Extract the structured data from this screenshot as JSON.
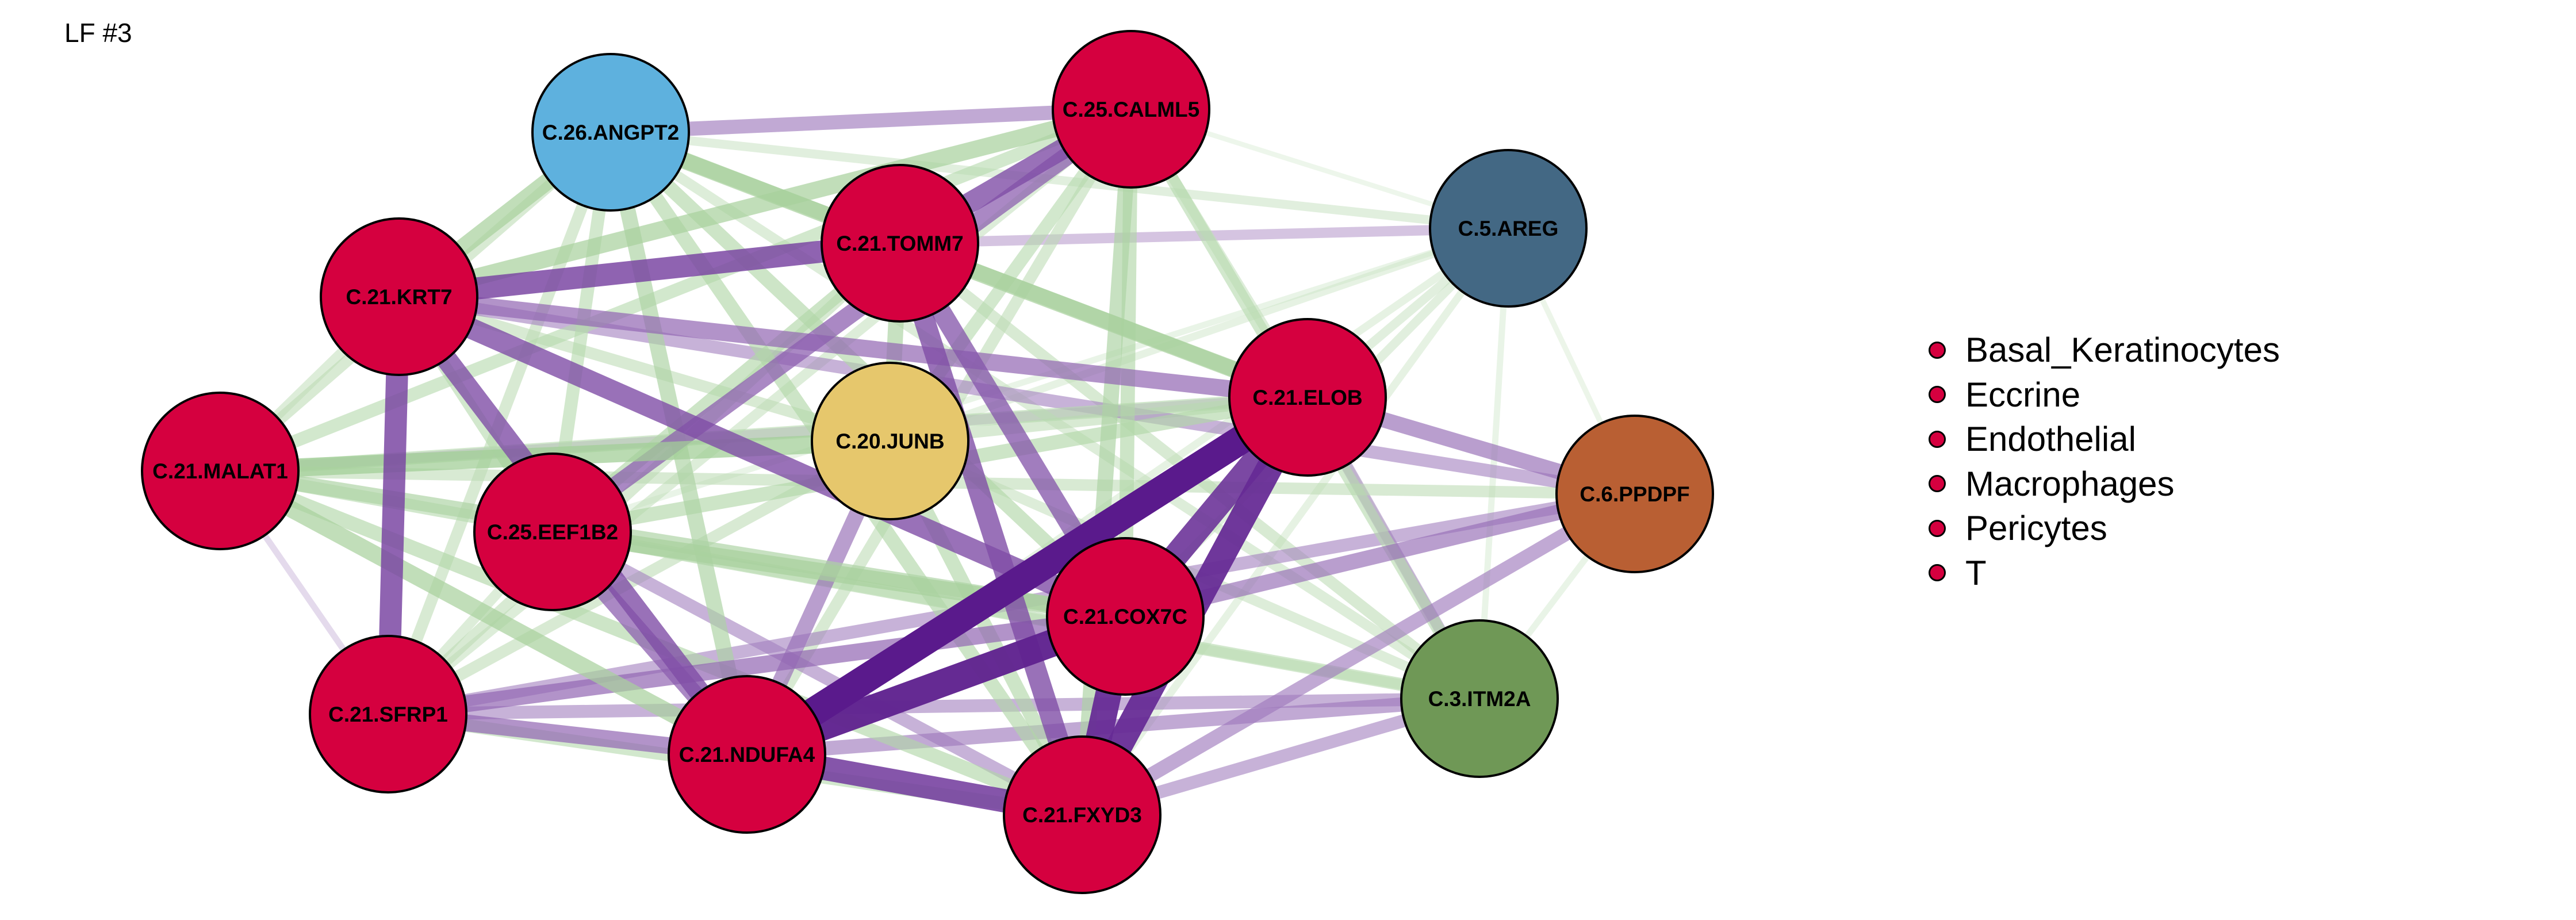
{
  "title": "LF #3",
  "colors": {
    "node_red": "#d5003f",
    "node_blue": "#5eb1de",
    "node_steel": "#436884",
    "node_yellow": "#e6c76c",
    "node_orange": "#b95f33",
    "node_green": "#6f9856",
    "node_border": "#000000",
    "edge_positive": "#7ab96b",
    "edge_negative": "#5a1a8c"
  },
  "nodes": [
    {
      "id": "ANGPT2",
      "label": "C.26.ANGPT2",
      "color": "node_blue"
    },
    {
      "id": "CALML5",
      "label": "C.25.CALML5",
      "color": "node_red"
    },
    {
      "id": "AREG",
      "label": "C.5.AREG",
      "color": "node_steel"
    },
    {
      "id": "TOMM7",
      "label": "C.21.TOMM7",
      "color": "node_red"
    },
    {
      "id": "KRT7",
      "label": "C.21.KRT7",
      "color": "node_red"
    },
    {
      "id": "ELOB",
      "label": "C.21.ELOB",
      "color": "node_red"
    },
    {
      "id": "JUNB",
      "label": "C.20.JUNB",
      "color": "node_yellow"
    },
    {
      "id": "MALAT1",
      "label": "C.21.MALAT1",
      "color": "node_red"
    },
    {
      "id": "PPDPF",
      "label": "C.6.PPDPF",
      "color": "node_orange"
    },
    {
      "id": "EEF1B2",
      "label": "C.25.EEF1B2",
      "color": "node_red"
    },
    {
      "id": "COX7C",
      "label": "C.21.COX7C",
      "color": "node_red"
    },
    {
      "id": "ITM2A",
      "label": "C.3.ITM2A",
      "color": "node_green"
    },
    {
      "id": "SFRP1",
      "label": "C.21.SFRP1",
      "color": "node_red"
    },
    {
      "id": "NDUFA4",
      "label": "C.21.NDUFA4",
      "color": "node_red"
    },
    {
      "id": "FXYD3",
      "label": "C.21.FXYD3",
      "color": "node_red"
    }
  ],
  "edges": [
    {
      "from": "NDUFA4",
      "to": "ELOB",
      "sign": "negative",
      "weight": 1.0
    },
    {
      "from": "NDUFA4",
      "to": "COX7C",
      "sign": "negative",
      "weight": 0.95
    },
    {
      "from": "FXYD3",
      "to": "ELOB",
      "sign": "negative",
      "weight": 0.9
    },
    {
      "from": "COX7C",
      "to": "ELOB",
      "sign": "negative",
      "weight": 0.85
    },
    {
      "from": "COX7C",
      "to": "FXYD3",
      "sign": "negative",
      "weight": 0.9
    },
    {
      "from": "NDUFA4",
      "to": "FXYD3",
      "sign": "negative",
      "weight": 0.8
    },
    {
      "from": "KRT7",
      "to": "TOMM7",
      "sign": "negative",
      "weight": 0.75
    },
    {
      "from": "KRT7",
      "to": "SFRP1",
      "sign": "negative",
      "weight": 0.75
    },
    {
      "from": "TOMM7",
      "to": "CALML5",
      "sign": "negative",
      "weight": 0.7
    },
    {
      "from": "KRT7",
      "to": "NDUFA4",
      "sign": "negative",
      "weight": 0.7
    },
    {
      "from": "KRT7",
      "to": "COX7C",
      "sign": "negative",
      "weight": 0.7
    },
    {
      "from": "TOMM7",
      "to": "FXYD3",
      "sign": "negative",
      "weight": 0.7
    },
    {
      "from": "TOMM7",
      "to": "COX7C",
      "sign": "negative",
      "weight": 0.65
    },
    {
      "from": "EEF1B2",
      "to": "NDUFA4",
      "sign": "negative",
      "weight": 0.6
    },
    {
      "from": "EEF1B2",
      "to": "CALML5",
      "sign": "negative",
      "weight": 0.6
    },
    {
      "from": "SFRP1",
      "to": "NDUFA4",
      "sign": "negative",
      "weight": 0.55
    },
    {
      "from": "SFRP1",
      "to": "COX7C",
      "sign": "negative",
      "weight": 0.55
    },
    {
      "from": "KRT7",
      "to": "ELOB",
      "sign": "negative",
      "weight": 0.55
    },
    {
      "from": "NDUFA4",
      "to": "JUNB",
      "sign": "negative",
      "weight": 0.5
    },
    {
      "from": "ELOB",
      "to": "PPDPF",
      "sign": "negative",
      "weight": 0.5
    },
    {
      "from": "COX7C",
      "to": "PPDPF",
      "sign": "negative",
      "weight": 0.5
    },
    {
      "from": "FXYD3",
      "to": "PPDPF",
      "sign": "negative",
      "weight": 0.45
    },
    {
      "from": "NDUFA4",
      "to": "ITM2A",
      "sign": "negative",
      "weight": 0.45
    },
    {
      "from": "SFRP1",
      "to": "PPDPF",
      "sign": "negative",
      "weight": 0.4
    },
    {
      "from": "KRT7",
      "to": "PPDPF",
      "sign": "negative",
      "weight": 0.4
    },
    {
      "from": "FXYD3",
      "to": "ITM2A",
      "sign": "negative",
      "weight": 0.4
    },
    {
      "from": "SFRP1",
      "to": "ITM2A",
      "sign": "negative",
      "weight": 0.4
    },
    {
      "from": "ANGPT2",
      "to": "CALML5",
      "sign": "negative",
      "weight": 0.45
    },
    {
      "from": "ELOB",
      "to": "ITM2A",
      "sign": "negative",
      "weight": 0.35
    },
    {
      "from": "TOMM7",
      "to": "AREG",
      "sign": "negative",
      "weight": 0.3
    },
    {
      "from": "EEF1B2",
      "to": "FXYD3",
      "sign": "negative",
      "weight": 0.4
    },
    {
      "from": "MALAT1",
      "to": "SFRP1",
      "sign": "negative",
      "weight": 0.15
    },
    {
      "from": "MALAT1",
      "to": "ELOB",
      "sign": "negative",
      "weight": 0.3
    },
    {
      "from": "MALAT1",
      "to": "ANGPT2",
      "sign": "positive",
      "weight": 0.35
    },
    {
      "from": "MALAT1",
      "to": "JUNB",
      "sign": "positive",
      "weight": 0.6
    },
    {
      "from": "MALAT1",
      "to": "ELOB",
      "sign": "positive",
      "weight": 0.4
    },
    {
      "from": "MALAT1",
      "to": "COX7C",
      "sign": "positive",
      "weight": 0.5
    },
    {
      "from": "MALAT1",
      "to": "NDUFA4",
      "sign": "positive",
      "weight": 0.55
    },
    {
      "from": "MALAT1",
      "to": "FXYD3",
      "sign": "positive",
      "weight": 0.45
    },
    {
      "from": "MALAT1",
      "to": "ITM2A",
      "sign": "positive",
      "weight": 0.4
    },
    {
      "from": "MALAT1",
      "to": "CALML5",
      "sign": "positive",
      "weight": 0.4
    },
    {
      "from": "MALAT1",
      "to": "PPDPF",
      "sign": "positive",
      "weight": 0.35
    },
    {
      "from": "ANGPT2",
      "to": "KRT7",
      "sign": "positive",
      "weight": 0.55
    },
    {
      "from": "ANGPT2",
      "to": "TOMM7",
      "sign": "positive",
      "weight": 0.55
    },
    {
      "from": "ANGPT2",
      "to": "ELOB",
      "sign": "positive",
      "weight": 0.5
    },
    {
      "from": "ANGPT2",
      "to": "NDUFA4",
      "sign": "positive",
      "weight": 0.5
    },
    {
      "from": "ANGPT2",
      "to": "FXYD3",
      "sign": "positive",
      "weight": 0.45
    },
    {
      "from": "ANGPT2",
      "to": "COX7C",
      "sign": "positive",
      "weight": 0.45
    },
    {
      "from": "ANGPT2",
      "to": "EEF1B2",
      "sign": "positive",
      "weight": 0.4
    },
    {
      "from": "ANGPT2",
      "to": "SFRP1",
      "sign": "positive",
      "weight": 0.35
    },
    {
      "from": "ANGPT2",
      "to": "ITM2A",
      "sign": "positive",
      "weight": 0.3
    },
    {
      "from": "ANGPT2",
      "to": "AREG",
      "sign": "positive",
      "weight": 0.25
    },
    {
      "from": "CALML5",
      "to": "KRT7",
      "sign": "positive",
      "weight": 0.55
    },
    {
      "from": "CALML5",
      "to": "FXYD3",
      "sign": "positive",
      "weight": 0.5
    },
    {
      "from": "CALML5",
      "to": "COX7C",
      "sign": "positive",
      "weight": 0.45
    },
    {
      "from": "CALML5",
      "to": "ITM2A",
      "sign": "positive",
      "weight": 0.4
    },
    {
      "from": "CALML5",
      "to": "JUNB",
      "sign": "positive",
      "weight": 0.4
    },
    {
      "from": "CALML5",
      "to": "NDUFA4",
      "sign": "positive",
      "weight": 0.35
    },
    {
      "from": "CALML5",
      "to": "SFRP1",
      "sign": "positive",
      "weight": 0.3
    },
    {
      "from": "CALML5",
      "to": "ELOB",
      "sign": "positive",
      "weight": 0.3
    },
    {
      "from": "AREG",
      "to": "ELOB",
      "sign": "positive",
      "weight": 0.25
    },
    {
      "from": "AREG",
      "to": "COX7C",
      "sign": "positive",
      "weight": 0.25
    },
    {
      "from": "AREG",
      "to": "FXYD3",
      "sign": "positive",
      "weight": 0.2
    },
    {
      "from": "AREG",
      "to": "ITM2A",
      "sign": "positive",
      "weight": 0.15
    },
    {
      "from": "AREG",
      "to": "NDUFA4",
      "sign": "positive",
      "weight": 0.2
    },
    {
      "from": "AREG",
      "to": "EEF1B2",
      "sign": "positive",
      "weight": 0.15
    },
    {
      "from": "AREG",
      "to": "JUNB",
      "sign": "positive",
      "weight": 0.2
    },
    {
      "from": "AREG",
      "to": "PPDPF",
      "sign": "positive",
      "weight": 0.12
    },
    {
      "from": "AREG",
      "to": "CALML5",
      "sign": "positive",
      "weight": 0.1
    },
    {
      "from": "KRT7",
      "to": "EEF1B2",
      "sign": "positive",
      "weight": 0.4
    },
    {
      "from": "KRT7",
      "to": "JUNB",
      "sign": "positive",
      "weight": 0.35
    },
    {
      "from": "KRT7",
      "to": "MALAT1",
      "sign": "positive",
      "weight": 0.3
    },
    {
      "from": "TOMM7",
      "to": "JUNB",
      "sign": "positive",
      "weight": 0.5
    },
    {
      "from": "TOMM7",
      "to": "EEF1B2",
      "sign": "positive",
      "weight": 0.45
    },
    {
      "from": "TOMM7",
      "to": "ELOB",
      "sign": "positive",
      "weight": 0.55
    },
    {
      "from": "TOMM7",
      "to": "ITM2A",
      "sign": "positive",
      "weight": 0.35
    },
    {
      "from": "TOMM7",
      "to": "SFRP1",
      "sign": "positive",
      "weight": 0.35
    },
    {
      "from": "EEF1B2",
      "to": "COX7C",
      "sign": "positive",
      "weight": 0.55
    },
    {
      "from": "EEF1B2",
      "to": "ELOB",
      "sign": "positive",
      "weight": 0.45
    },
    {
      "from": "EEF1B2",
      "to": "SFRP1",
      "sign": "positive",
      "weight": 0.3
    },
    {
      "from": "EEF1B2",
      "to": "ITM2A",
      "sign": "positive",
      "weight": 0.3
    },
    {
      "from": "JUNB",
      "to": "FXYD3",
      "sign": "positive",
      "weight": 0.45
    },
    {
      "from": "JUNB",
      "to": "ELOB",
      "sign": "positive",
      "weight": 0.35
    },
    {
      "from": "JUNB",
      "to": "SFRP1",
      "sign": "positive",
      "weight": 0.35
    },
    {
      "from": "JUNB",
      "to": "ITM2A",
      "sign": "positive",
      "weight": 0.3
    },
    {
      "from": "SFRP1",
      "to": "FXYD3",
      "sign": "positive",
      "weight": 0.4
    },
    {
      "from": "ELOB",
      "to": "ITM2A",
      "sign": "positive",
      "weight": 0.3
    },
    {
      "from": "PPDPF",
      "to": "ITM2A",
      "sign": "positive",
      "weight": 0.15
    }
  ],
  "legend": [
    {
      "label": "Basal_Keratinocytes",
      "color": "node_red"
    },
    {
      "label": "Eccrine",
      "color": "node_red"
    },
    {
      "label": "Endothelial",
      "color": "node_red"
    },
    {
      "label": "Macrophages",
      "color": "node_red"
    },
    {
      "label": "Pericytes",
      "color": "node_red"
    },
    {
      "label": "T",
      "color": "node_red"
    }
  ]
}
